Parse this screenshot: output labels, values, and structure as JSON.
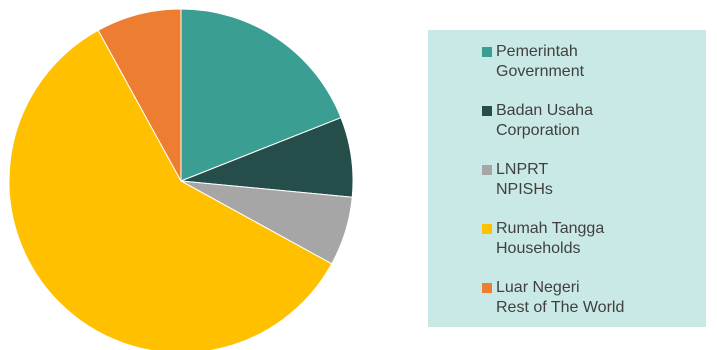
{
  "chart_data": {
    "type": "pie",
    "start_angle_deg": 0,
    "direction": "clockwise",
    "slices": [
      {
        "label_id": "Pemerintah",
        "label_en": "Government",
        "value": 19.0,
        "color": "#3a9e93"
      },
      {
        "label_id": "Badan Usaha",
        "label_en": "Corporation",
        "value": 7.5,
        "color": "#254d4a"
      },
      {
        "label_id": "LNPRT",
        "label_en": "NPISHs",
        "value": 6.5,
        "color": "#a6a6a6"
      },
      {
        "label_id": "Rumah Tangga",
        "label_en": "Households",
        "value": 59.0,
        "color": "#ffc000"
      },
      {
        "label_id": "Luar Negeri",
        "label_en": "Rest of The World",
        "value": 8.0,
        "color": "#ed7d31"
      }
    ],
    "legend_position": "right"
  }
}
